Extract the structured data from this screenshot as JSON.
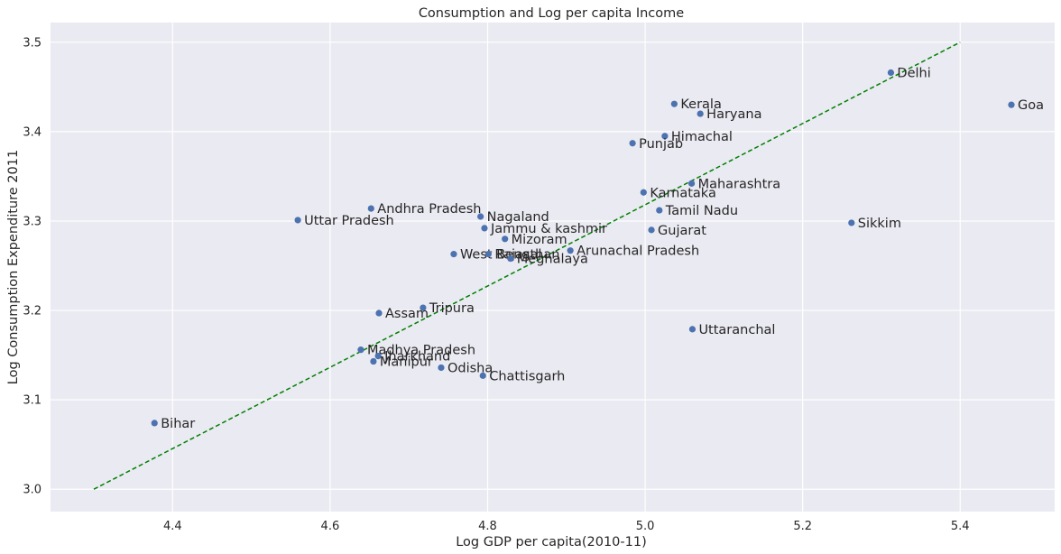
{
  "chart_data": {
    "type": "scatter",
    "title": "Consumption and Log per capita Income",
    "xlabel": "Log GDP per capita(2010-11)",
    "ylabel": "Log Consumption Expenditure 2011",
    "xlim": [
      4.245,
      5.52
    ],
    "ylim": [
      2.975,
      3.522
    ],
    "xticks": [
      4.4,
      4.6,
      4.8,
      5.0,
      5.2,
      5.4
    ],
    "xtick_labels": [
      "4.4",
      "4.6",
      "4.8",
      "5.0",
      "5.2",
      "5.4"
    ],
    "yticks": [
      3.0,
      3.1,
      3.2,
      3.3,
      3.4,
      3.5
    ],
    "ytick_labels": [
      "3.0",
      "3.1",
      "3.2",
      "3.3",
      "3.4",
      "3.5"
    ],
    "grid": true,
    "background": "#eaeaf2",
    "point_color": "#4c72b0",
    "line_color": "#008000",
    "fit_line": {
      "style": "dashed",
      "x": [
        4.3,
        5.4
      ],
      "y": [
        3.0,
        3.5
      ]
    },
    "points": [
      {
        "label": "Delhi",
        "x": 5.312,
        "y": 3.466
      },
      {
        "label": "Goa",
        "x": 5.465,
        "y": 3.43
      },
      {
        "label": "Kerala",
        "x": 5.037,
        "y": 3.431
      },
      {
        "label": "Haryana",
        "x": 5.07,
        "y": 3.42
      },
      {
        "label": "Himachal",
        "x": 5.025,
        "y": 3.395
      },
      {
        "label": "Punjab",
        "x": 4.984,
        "y": 3.387
      },
      {
        "label": "Maharashtra",
        "x": 5.059,
        "y": 3.342
      },
      {
        "label": "Karnataka",
        "x": 4.998,
        "y": 3.332
      },
      {
        "label": "Tamil Nadu",
        "x": 5.018,
        "y": 3.312
      },
      {
        "label": "Gujarat",
        "x": 5.008,
        "y": 3.29
      },
      {
        "label": "Sikkim",
        "x": 5.262,
        "y": 3.298
      },
      {
        "label": "Andhra Pradesh",
        "x": 4.652,
        "y": 3.314
      },
      {
        "label": "Uttar Pradesh",
        "x": 4.559,
        "y": 3.301
      },
      {
        "label": "Nagaland",
        "x": 4.791,
        "y": 3.305
      },
      {
        "label": "Jammu & kashmir",
        "x": 4.796,
        "y": 3.292
      },
      {
        "label": "Mizoram",
        "x": 4.822,
        "y": 3.28
      },
      {
        "label": "Arunachal Pradesh",
        "x": 4.905,
        "y": 3.267
      },
      {
        "label": "West Bengal",
        "x": 4.757,
        "y": 3.263
      },
      {
        "label": "Rajasthan",
        "x": 4.801,
        "y": 3.263
      },
      {
        "label": "Meghalaya",
        "x": 4.829,
        "y": 3.258
      },
      {
        "label": "Tripura",
        "x": 4.718,
        "y": 3.203
      },
      {
        "label": "Assam",
        "x": 4.662,
        "y": 3.197
      },
      {
        "label": "Uttaranchal",
        "x": 5.06,
        "y": 3.179
      },
      {
        "label": "Madhya Pradesh",
        "x": 4.639,
        "y": 3.156
      },
      {
        "label": "Jharkhand",
        "x": 4.661,
        "y": 3.149
      },
      {
        "label": "Manipur",
        "x": 4.655,
        "y": 3.143
      },
      {
        "label": "Odisha",
        "x": 4.741,
        "y": 3.136
      },
      {
        "label": "Chattisgarh",
        "x": 4.794,
        "y": 3.127
      },
      {
        "label": "Bihar",
        "x": 4.377,
        "y": 3.074
      }
    ]
  }
}
